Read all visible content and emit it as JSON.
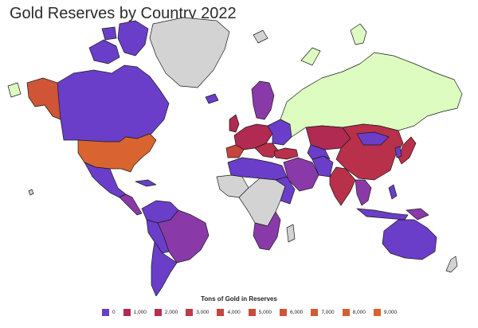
{
  "title": "Gold Reserves by Country 2022",
  "legend": {
    "title": "Tons of Gold in Reserves",
    "items": [
      {
        "label": "0",
        "color": "#6a3ec8"
      },
      {
        "label": "1,000",
        "color": "#b02a52"
      },
      {
        "label": "2,000",
        "color": "#b8304a"
      },
      {
        "label": "3,000",
        "color": "#bf3a44"
      },
      {
        "label": "4,000",
        "color": "#c5443e"
      },
      {
        "label": "5,000",
        "color": "#ca4c3a"
      },
      {
        "label": "6,000",
        "color": "#d05436"
      },
      {
        "label": "7,000",
        "color": "#d35a34"
      },
      {
        "label": "8,000",
        "color": "#d65f32"
      },
      {
        "label": "9,000",
        "color": "#d9642f"
      }
    ]
  },
  "colors": {
    "no_data": "#d3d3d3",
    "russia": "#ddfcc0",
    "low": "#6a3ec8",
    "mid": "#8a3aa8",
    "high": "#b8304a",
    "usa": "#d9642f"
  }
}
